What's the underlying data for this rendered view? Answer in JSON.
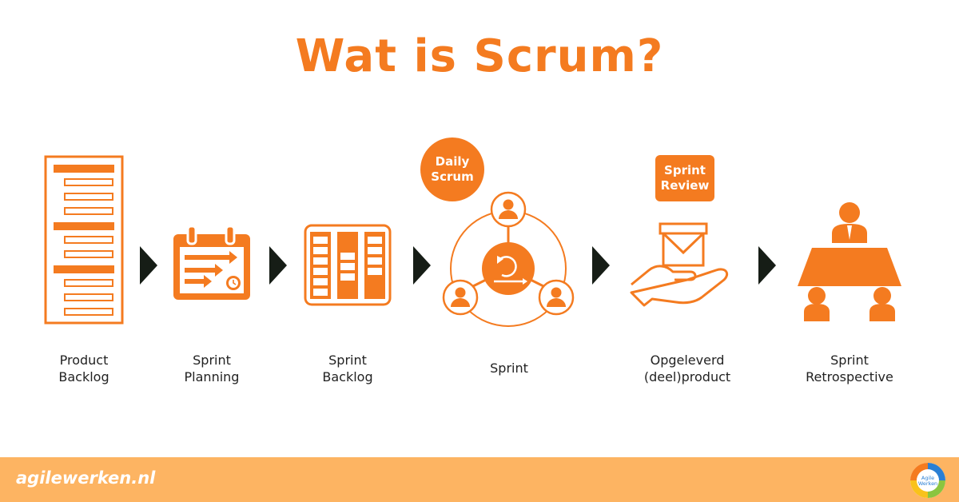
{
  "title": "Wat is Scrum?",
  "steps": [
    {
      "line1": "Product",
      "line2": "Backlog",
      "icon": "backlog-document-icon"
    },
    {
      "line1": "Sprint",
      "line2": "Planning",
      "icon": "calendar-planning-icon"
    },
    {
      "line1": "Sprint",
      "line2": "Backlog",
      "icon": "sprint-board-icon"
    },
    {
      "line1": "Sprint",
      "line2": "",
      "icon": "sprint-cycle-icon"
    },
    {
      "line1": "Opgeleverd",
      "line2": "(deel)product",
      "icon": "hand-delivery-icon"
    },
    {
      "line1": "Sprint",
      "line2": "Retrospective",
      "icon": "retrospective-meeting-icon"
    }
  ],
  "badges": {
    "daily_scrum": {
      "line1": "Daily",
      "line2": "Scrum"
    },
    "sprint_review": {
      "line1": "Sprint",
      "line2": "Review"
    }
  },
  "footer": {
    "site": "agilewerken.nl",
    "logo_text": {
      "line1": "Agile",
      "line2": "Werken"
    }
  },
  "colors": {
    "accent": "#f47b20",
    "footer": "#fdb462",
    "arrow": "#161d16"
  }
}
